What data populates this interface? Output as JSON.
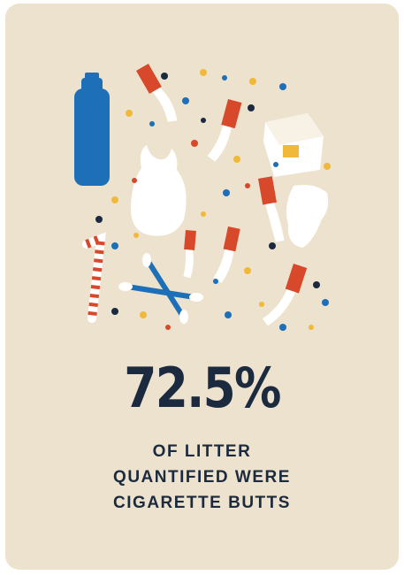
{
  "stat": {
    "value": "72.5%"
  },
  "caption": {
    "lines": [
      "OF LITTER",
      "QUANTIFIED WERE",
      "CIGARETTE BUTTS"
    ]
  },
  "colors": {
    "background": "#ece2cd",
    "text": "#1b2a3f",
    "bottle_blue": "#1d6fb8",
    "filter_orange": "#d8482a",
    "confetti_yellow": "#f0b93a",
    "white_litter": "#ffffff"
  },
  "illustration": {
    "items": [
      "plastic-bottle-icon",
      "plastic-bag-icon",
      "food-container-icon",
      "cigarette-butt-icon",
      "straw-icon",
      "cotton-swab-icon",
      "paper-scrap-icon",
      "confetti-dots"
    ]
  }
}
